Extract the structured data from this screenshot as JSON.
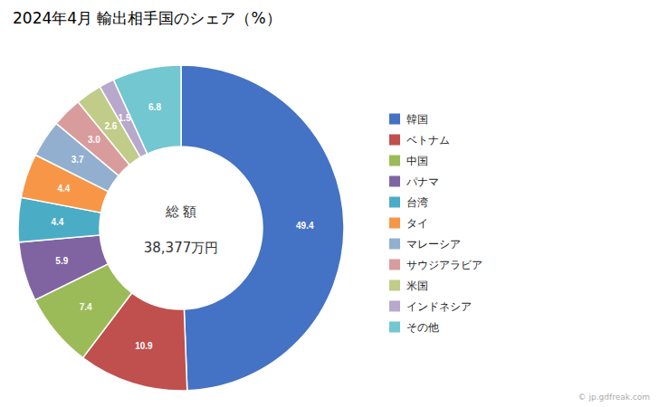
{
  "chart_data": {
    "type": "donut",
    "title": "2024年4月 輸出相手国のシェア（%）",
    "categories": [
      "韓国",
      "ベトナム",
      "中国",
      "パナマ",
      "台湾",
      "タイ",
      "マレーシア",
      "サウジアラビア",
      "米国",
      "インドネシア",
      "その他"
    ],
    "values": [
      49.4,
      10.9,
      7.4,
      5.9,
      4.4,
      4.4,
      3.7,
      3.0,
      2.6,
      1.5,
      6.8
    ],
    "value_labels": [
      "49.4",
      "10.9",
      "7.4",
      "5.9",
      "4.4",
      "4.4",
      "3.7",
      "3.0",
      "2.6",
      "1.5",
      "6.8"
    ],
    "colors": [
      "#4472C4",
      "#C0504D",
      "#9BBB59",
      "#8064A2",
      "#4BACC6",
      "#F79646",
      "#92AFCF",
      "#D99C9C",
      "#C0CC88",
      "#B8A8CC",
      "#72C7D0"
    ],
    "data_labels": true,
    "legend": "right",
    "annotations": [
      "総 額",
      "38,377万円",
      "© jp.gdfreak.com"
    ]
  }
}
